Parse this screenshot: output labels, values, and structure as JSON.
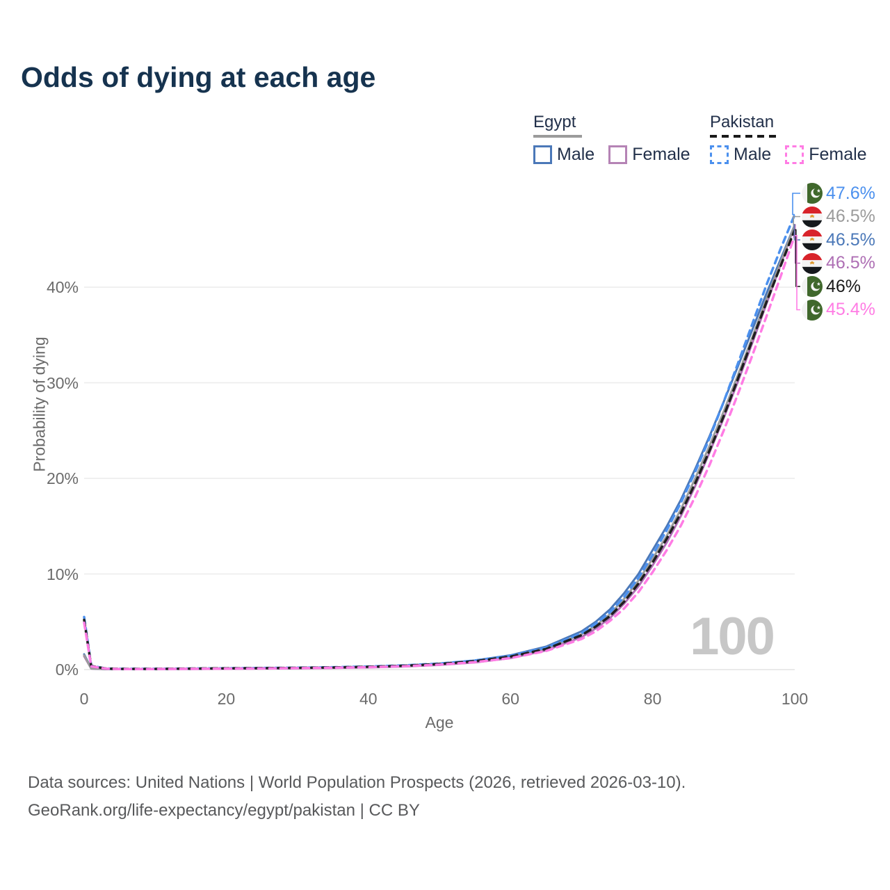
{
  "title": "Odds of dying at each age",
  "legend": {
    "groups": [
      {
        "label": "Egypt",
        "line_style": "solid",
        "underline_color": "#9b9b9b",
        "items": [
          {
            "label": "Male",
            "color": "#4b78b8"
          },
          {
            "label": "Female",
            "color": "#b583b5"
          }
        ]
      },
      {
        "label": "Pakistan",
        "line_style": "dashed",
        "underline_color": "#1a1a1a",
        "items": [
          {
            "label": "Male",
            "color": "#4b90ee"
          },
          {
            "label": "Female",
            "color": "#ff7ce4"
          }
        ]
      }
    ]
  },
  "chart_data": {
    "type": "line",
    "title": "Odds of dying at each age",
    "xlabel": "Age",
    "ylabel": "Probability of dying",
    "x_ticks": [
      0,
      20,
      40,
      60,
      80,
      100
    ],
    "y_tick_labels": [
      "0%",
      "10%",
      "20%",
      "30%",
      "40%"
    ],
    "y_tick_values": [
      0,
      10,
      20,
      30,
      40
    ],
    "xlim": [
      0,
      100
    ],
    "ylim_pct": [
      0,
      47.6
    ],
    "grid": "horizontal",
    "legend_position": "top-right",
    "watermark": "100",
    "ages": [
      0,
      1,
      3,
      5,
      10,
      15,
      20,
      25,
      30,
      35,
      40,
      45,
      50,
      55,
      60,
      65,
      70,
      72,
      74,
      76,
      78,
      80,
      82,
      84,
      86,
      88,
      90,
      92,
      94,
      96,
      98,
      100
    ],
    "series": [
      {
        "name": "Egypt Female",
        "id": "egypt-female",
        "color": "#ae6fb4",
        "dashed": false,
        "values": [
          1.4,
          0.1,
          0.04,
          0.04,
          0.045,
          0.06,
          0.08,
          0.1,
          0.13,
          0.17,
          0.22,
          0.32,
          0.48,
          0.75,
          1.2,
          2.0,
          3.4,
          4.3,
          5.4,
          6.9,
          8.7,
          10.9,
          13.3,
          16.1,
          19.2,
          22.7,
          26.3,
          30.1,
          34.1,
          38.2,
          42.3,
          46.5
        ]
      },
      {
        "name": "Egypt Male",
        "id": "egypt-male",
        "color": "#4b78b8",
        "dashed": false,
        "values": [
          1.6,
          0.12,
          0.06,
          0.05,
          0.06,
          0.09,
          0.13,
          0.16,
          0.19,
          0.23,
          0.3,
          0.42,
          0.62,
          0.95,
          1.5,
          2.4,
          4.0,
          5.0,
          6.3,
          8.0,
          10.0,
          12.5,
          15.0,
          17.8,
          21.0,
          24.4,
          28.0,
          31.7,
          35.5,
          39.3,
          42.9,
          46.5
        ]
      },
      {
        "name": "Egypt Both sexes",
        "id": "egypt-both",
        "color": "#9b9b9b",
        "dashed": false,
        "values": [
          1.5,
          0.11,
          0.05,
          0.045,
          0.05,
          0.08,
          0.11,
          0.13,
          0.16,
          0.2,
          0.26,
          0.37,
          0.55,
          0.85,
          1.35,
          2.2,
          3.7,
          4.6,
          5.8,
          7.4,
          9.3,
          11.6,
          14.0,
          16.8,
          20.0,
          23.4,
          27.0,
          30.8,
          34.7,
          38.7,
          42.6,
          46.5
        ]
      },
      {
        "name": "Pakistan Male",
        "id": "pakistan-male",
        "color": "#4b90ee",
        "dashed": true,
        "values": [
          5.5,
          0.4,
          0.12,
          0.08,
          0.08,
          0.11,
          0.14,
          0.17,
          0.2,
          0.25,
          0.32,
          0.44,
          0.63,
          0.95,
          1.45,
          2.3,
          3.8,
          4.8,
          6.0,
          7.6,
          9.6,
          12.0,
          14.6,
          17.5,
          20.7,
          24.2,
          28.0,
          32.0,
          36.1,
          40.2,
          44.0,
          47.6
        ]
      },
      {
        "name": "Pakistan Both sexes",
        "id": "pakistan-both",
        "color": "#1f1f1f",
        "dashed": true,
        "values": [
          5.2,
          0.37,
          0.11,
          0.07,
          0.07,
          0.1,
          0.13,
          0.15,
          0.18,
          0.22,
          0.29,
          0.4,
          0.58,
          0.88,
          1.35,
          2.15,
          3.6,
          4.5,
          5.6,
          7.1,
          9.0,
          11.2,
          13.7,
          16.4,
          19.5,
          22.9,
          26.5,
          30.4,
          34.4,
          38.4,
          42.2,
          46.0
        ]
      },
      {
        "name": "Pakistan Female",
        "id": "pakistan-female",
        "color": "#ff7ce4",
        "dashed": true,
        "values": [
          4.9,
          0.34,
          0.1,
          0.06,
          0.06,
          0.08,
          0.1,
          0.12,
          0.15,
          0.19,
          0.25,
          0.35,
          0.52,
          0.78,
          1.2,
          1.95,
          3.2,
          4.0,
          5.1,
          6.4,
          8.1,
          10.2,
          12.5,
          15.1,
          18.1,
          21.4,
          25.0,
          28.8,
          32.8,
          36.9,
          41.1,
          45.4
        ]
      }
    ],
    "end_labels": [
      {
        "text": "47.6%",
        "value": 47.6,
        "color": "#4b90ee",
        "flag": "pakistan",
        "series": "pakistan-male"
      },
      {
        "text": "46.5%",
        "value": 46.5,
        "color": "#9b9b9b",
        "flag": "egypt",
        "series": "egypt-both"
      },
      {
        "text": "46.5%",
        "value": 46.5,
        "color": "#4b78b8",
        "flag": "egypt",
        "series": "egypt-male"
      },
      {
        "text": "46.5%",
        "value": 46.5,
        "color": "#ae6fb4",
        "flag": "egypt",
        "series": "egypt-female"
      },
      {
        "text": "46%",
        "value": 46.0,
        "color": "#1a1a1a",
        "flag": "pakistan",
        "series": "pakistan-both"
      },
      {
        "text": "45.4%",
        "value": 45.4,
        "color": "#ff7ce4",
        "flag": "pakistan",
        "series": "pakistan-female"
      }
    ]
  },
  "footer": {
    "line1": "Data sources: United Nations | World Population Prospects (2026, retrieved 2026-03-10).",
    "line2": "GeoRank.org/life-expectancy/egypt/pakistan | CC BY"
  }
}
